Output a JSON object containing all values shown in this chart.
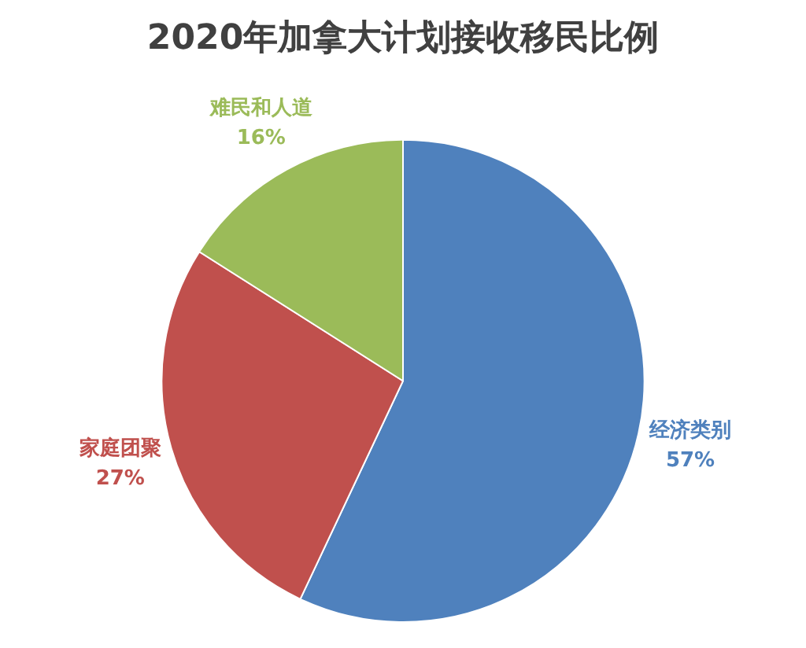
{
  "chart_data": {
    "type": "pie",
    "title": "2020年加拿大计划接收移民比例",
    "categories": [
      "经济类别",
      "家庭团聚",
      "难民和人道"
    ],
    "values": [
      57,
      27,
      16
    ],
    "colors": [
      "#4f81bd",
      "#c0504d",
      "#9bbb59"
    ],
    "value_labels": [
      "57%",
      "27%",
      "16%"
    ],
    "legend": false
  }
}
